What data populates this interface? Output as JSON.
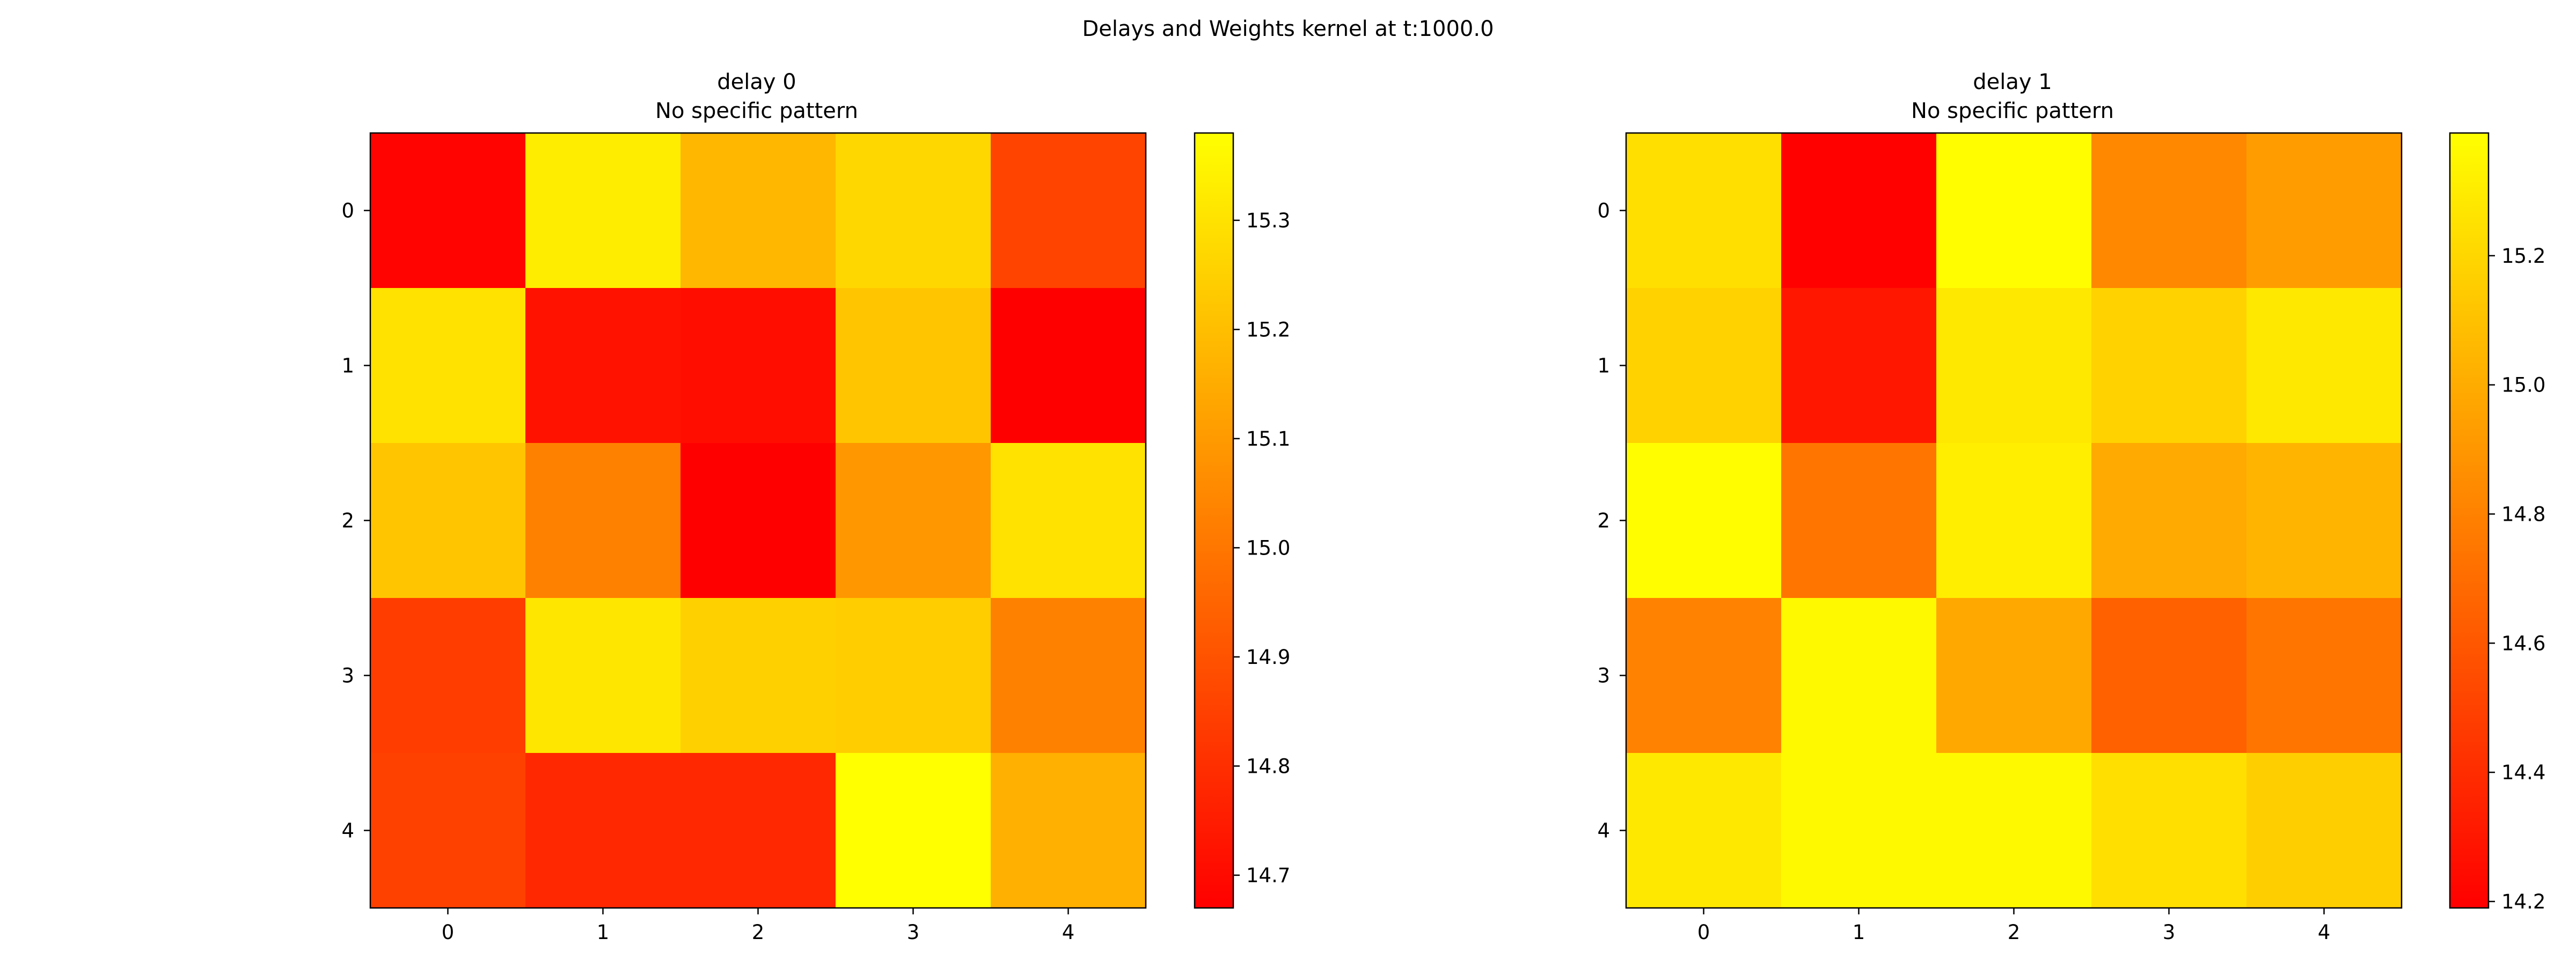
{
  "figure": {
    "suptitle": "Delays and Weights kernel at t:1000.0"
  },
  "chart_data": [
    {
      "type": "heatmap",
      "title": "delay 0",
      "subtitle": "No specific pattern",
      "x_ticks": [
        "0",
        "1",
        "2",
        "3",
        "4"
      ],
      "y_ticks": [
        "0",
        "1",
        "2",
        "3",
        "4"
      ],
      "colormap": "autumn",
      "colormap_colors": [
        "#ff0000",
        "#ffff00"
      ],
      "vmin": 14.67,
      "vmax": 15.38,
      "colorbar_ticks": [
        14.7,
        14.8,
        14.9,
        15.0,
        15.1,
        15.2,
        15.3
      ],
      "colorbar_tick_labels": [
        "14.7",
        "14.8",
        "14.9",
        "15.0",
        "15.1",
        "15.2",
        "15.3"
      ],
      "values": [
        [
          14.68,
          15.33,
          15.18,
          15.27,
          14.86
        ],
        [
          15.3,
          14.72,
          14.71,
          15.22,
          14.67
        ],
        [
          15.22,
          15.03,
          14.67,
          15.09,
          15.3
        ],
        [
          14.84,
          15.31,
          15.25,
          15.24,
          15.03
        ],
        [
          14.85,
          14.78,
          14.78,
          15.38,
          15.16
        ]
      ]
    },
    {
      "type": "heatmap",
      "title": "delay 1",
      "subtitle": "No specific pattern",
      "x_ticks": [
        "0",
        "1",
        "2",
        "3",
        "4"
      ],
      "y_ticks": [
        "0",
        "1",
        "2",
        "3",
        "4"
      ],
      "colormap": "autumn",
      "colormap_colors": [
        "#ff0000",
        "#ffff00"
      ],
      "vmin": 14.19,
      "vmax": 15.39,
      "colorbar_ticks": [
        14.2,
        14.4,
        14.6,
        14.8,
        15.0,
        15.2
      ],
      "colorbar_tick_labels": [
        "14.2",
        "14.4",
        "14.6",
        "14.8",
        "15.0",
        "15.2"
      ],
      "values": [
        [
          15.24,
          14.2,
          15.38,
          14.83,
          14.93
        ],
        [
          15.18,
          14.3,
          15.28,
          15.18,
          15.28
        ],
        [
          15.38,
          14.74,
          15.31,
          14.99,
          15.04
        ],
        [
          14.8,
          15.36,
          14.98,
          14.64,
          14.74
        ],
        [
          15.28,
          15.36,
          15.36,
          15.24,
          15.16
        ]
      ]
    }
  ]
}
